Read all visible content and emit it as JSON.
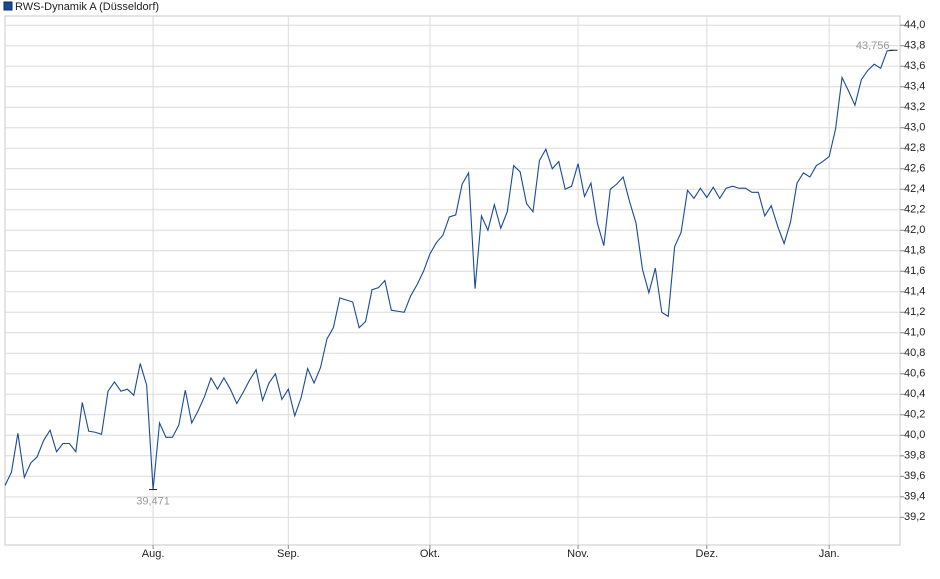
{
  "chart_data": {
    "type": "line",
    "series": [
      {
        "name": "RWS-Dynamik A (Düsseldorf)",
        "color": "#1a4a96",
        "values": [
          39.51,
          39.64,
          40.02,
          39.59,
          39.73,
          39.79,
          39.95,
          40.05,
          39.84,
          39.92,
          39.92,
          39.84,
          40.32,
          40.04,
          40.03,
          40.01,
          40.43,
          40.52,
          40.43,
          40.45,
          40.39,
          40.7,
          40.49,
          39.471,
          40.12,
          39.98,
          39.98,
          40.1,
          40.44,
          40.12,
          40.24,
          40.38,
          40.56,
          40.45,
          40.56,
          40.45,
          40.31,
          40.42,
          40.54,
          40.64,
          40.34,
          40.51,
          40.6,
          40.35,
          40.45,
          40.19,
          40.37,
          40.65,
          40.51,
          40.66,
          40.94,
          41.05,
          41.34,
          41.32,
          41.3,
          41.05,
          41.11,
          41.42,
          41.44,
          41.51,
          41.22,
          41.21,
          41.2,
          41.36,
          41.47,
          41.6,
          41.77,
          41.88,
          41.95,
          42.13,
          42.15,
          42.45,
          42.56,
          41.43,
          42.14,
          42.0,
          42.25,
          42.02,
          42.18,
          42.63,
          42.57,
          42.26,
          42.18,
          42.68,
          42.79,
          42.6,
          42.67,
          42.4,
          42.43,
          42.65,
          42.33,
          42.46,
          42.07,
          41.85,
          42.4,
          42.45,
          42.52,
          42.28,
          42.07,
          41.62,
          41.39,
          41.63,
          41.2,
          41.16,
          41.84,
          41.98,
          42.39,
          42.31,
          42.41,
          42.32,
          42.42,
          42.31,
          42.41,
          42.43,
          42.41,
          42.41,
          42.37,
          42.37,
          42.14,
          42.24,
          42.04,
          41.87,
          42.08,
          42.46,
          42.56,
          42.52,
          42.63,
          42.67,
          42.72,
          42.99,
          43.49,
          43.36,
          43.22,
          43.47,
          43.56,
          43.62,
          43.58,
          43.75,
          43.756
        ]
      }
    ],
    "annotations": [
      {
        "x": 23,
        "label": "39,471"
      },
      {
        "x": 138,
        "label": "43,756"
      }
    ],
    "xlim": [
      0,
      139
    ],
    "xticks": [
      {
        "value": 23,
        "label": "Aug."
      },
      {
        "value": 44,
        "label": "Sep."
      },
      {
        "value": 66,
        "label": "Okt."
      },
      {
        "value": 89,
        "label": "Nov."
      },
      {
        "value": 109,
        "label": "Dez."
      },
      {
        "value": 128,
        "label": "Jan."
      }
    ],
    "ylim": [
      38.93,
      44.09
    ],
    "yticks": [
      {
        "value": 39.2,
        "label": "39,2"
      },
      {
        "value": 39.4,
        "label": "39,4"
      },
      {
        "value": 39.6,
        "label": "39,6"
      },
      {
        "value": 39.8,
        "label": "39,8"
      },
      {
        "value": 40.0,
        "label": "40,0"
      },
      {
        "value": 40.2,
        "label": "40,2"
      },
      {
        "value": 40.4,
        "label": "40,4"
      },
      {
        "value": 40.6,
        "label": "40,6"
      },
      {
        "value": 40.8,
        "label": "40,8"
      },
      {
        "value": 41.0,
        "label": "41,0"
      },
      {
        "value": 41.2,
        "label": "41,2"
      },
      {
        "value": 41.4,
        "label": "41,4"
      },
      {
        "value": 41.6,
        "label": "41,6"
      },
      {
        "value": 41.8,
        "label": "41,8"
      },
      {
        "value": 42.0,
        "label": "42,0"
      },
      {
        "value": 42.2,
        "label": "42,2"
      },
      {
        "value": 42.4,
        "label": "42,4"
      },
      {
        "value": 42.6,
        "label": "42,6"
      },
      {
        "value": 42.8,
        "label": "42,8"
      },
      {
        "value": 43.0,
        "label": "43,0"
      },
      {
        "value": 43.2,
        "label": "43,2"
      },
      {
        "value": 43.4,
        "label": "43,4"
      },
      {
        "value": 43.6,
        "label": "43,6"
      },
      {
        "value": 43.8,
        "label": "43,8"
      },
      {
        "value": 44.0,
        "label": "44,0"
      }
    ],
    "grid": true
  }
}
